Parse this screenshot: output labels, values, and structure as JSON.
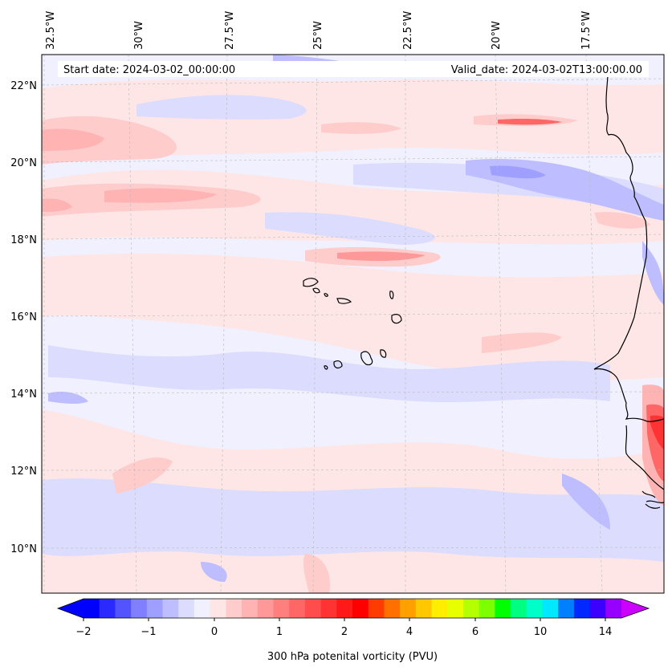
{
  "map": {
    "start_date": "Start date: 2024-03-02_00:00:00",
    "valid_date": "Valid_date: 2024-03-02T13:00:00.00",
    "longitude_labels": [
      "32.5°W",
      "30°W",
      "27.5°W",
      "25°W",
      "22.5°W",
      "20°W",
      "17.5°W"
    ],
    "latitude_labels": [
      "22°N",
      "20°N",
      "18°N",
      "16°N",
      "14°N",
      "12°N",
      "10°N"
    ],
    "extent": {
      "lon_min": -32.8,
      "lon_max": -15.8,
      "lat_min": 8.8,
      "lat_max": 22.8
    }
  },
  "colorbar": {
    "title": "300 hPa potenital vorticity (PVU)",
    "tick_labels": [
      "−2",
      "−1",
      "0",
      "1",
      "2",
      "4",
      "6",
      "10",
      "14"
    ],
    "colors": [
      "#0000ff",
      "#2a2aff",
      "#5454ff",
      "#7f7fff",
      "#9f9fff",
      "#bdbdff",
      "#dcdcff",
      "#f0f0ff",
      "#ffe6e6",
      "#ffcccc",
      "#ffb3b3",
      "#ff9999",
      "#ff7f7f",
      "#ff6666",
      "#ff4c4c",
      "#ff3333",
      "#ff1919",
      "#ff0000",
      "#ff3c00",
      "#ff7000",
      "#ffa000",
      "#ffc800",
      "#ffee00",
      "#e8ff00",
      "#b4ff00",
      "#7cff00",
      "#00ff00",
      "#00ff80",
      "#00ffc8",
      "#00e8ff",
      "#0080ff",
      "#0028ff",
      "#3c00ff",
      "#9600ff"
    ],
    "extend_low_color": "#0000ff",
    "extend_high_color": "#cc00ff"
  },
  "colors": {
    "background_field": "#f0f0ff",
    "coastline": "#000000",
    "gridline": "#bbbbbb"
  }
}
